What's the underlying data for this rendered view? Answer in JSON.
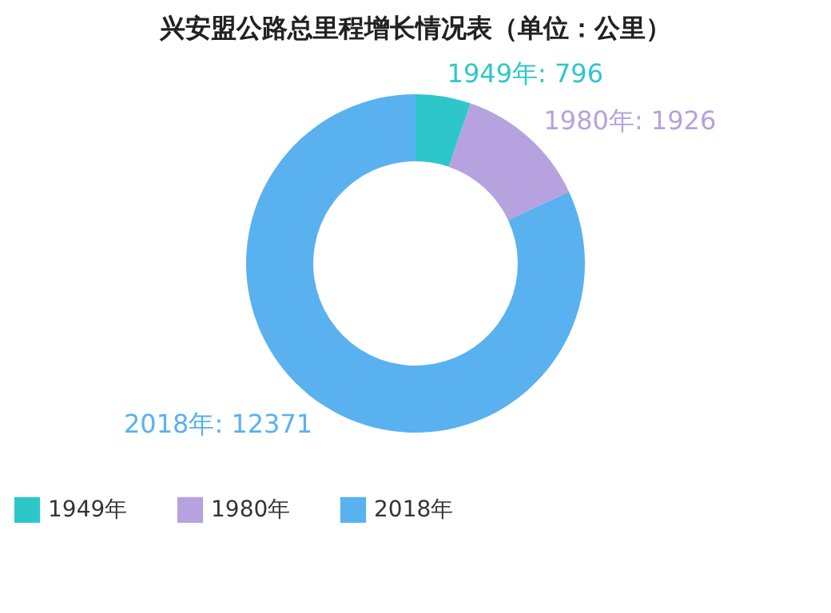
{
  "chart_data": {
    "type": "donut",
    "title": "兴安盟公路总里程增长情况表（单位：公里）",
    "categories": [
      "1949年",
      "1980年",
      "2018年"
    ],
    "values": [
      796,
      1926,
      12371
    ],
    "colors": [
      "#2ec7c9",
      "#b6a2de",
      "#5ab1ef"
    ],
    "value_labels": [
      "1949年: 796",
      "1980年: 1926",
      "2018年: 12371"
    ],
    "legend": "bottom"
  }
}
